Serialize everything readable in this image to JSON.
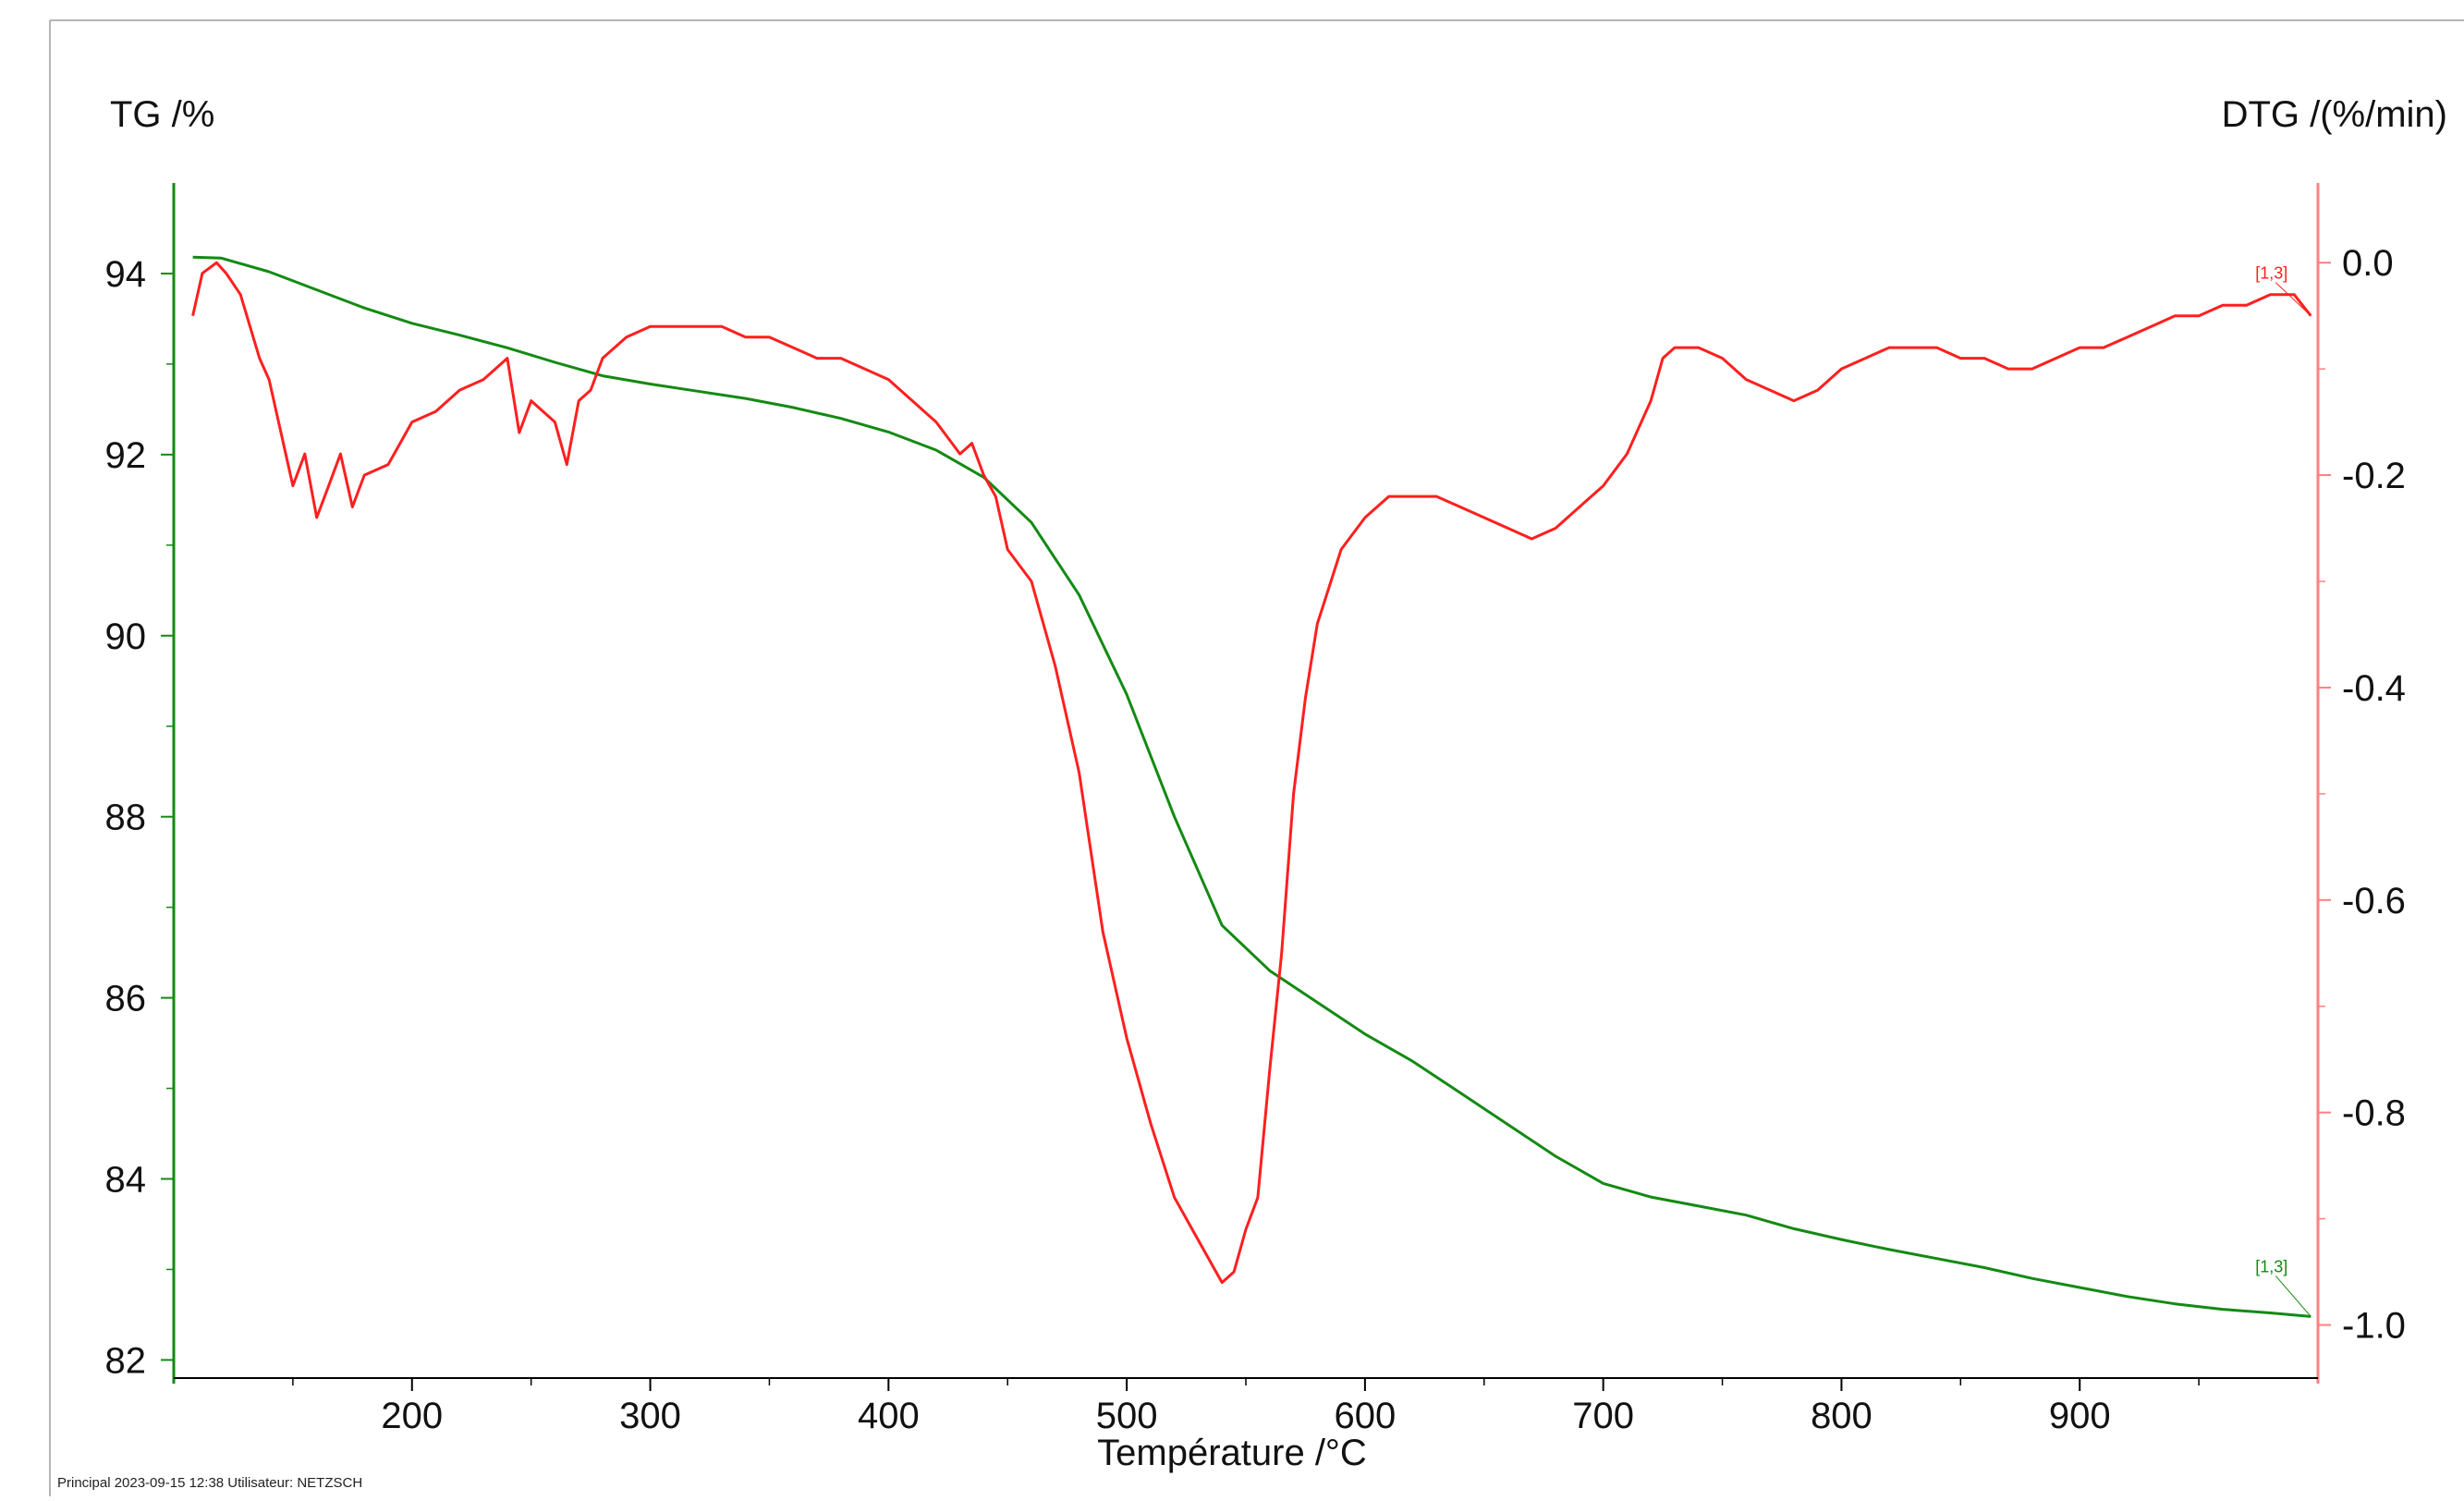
{
  "chart_data": {
    "type": "line",
    "title": "",
    "xlabel": "Température /°C",
    "ylabel_left": "TG /%",
    "ylabel_right": "DTG /(%/min)",
    "xlim": [
      100,
      1000
    ],
    "ylim_left": [
      81.8,
      95.0
    ],
    "ylim_right": [
      -1.05,
      0.075
    ],
    "x_ticks": [
      200,
      300,
      400,
      500,
      600,
      700,
      800,
      900
    ],
    "y_left_ticks": [
      82,
      84,
      86,
      88,
      90,
      92,
      94
    ],
    "y_right_ticks": [
      0.0,
      -0.2,
      -0.4,
      -0.6,
      -0.8,
      -1.0
    ],
    "y_right_tick_labels": [
      "0.0",
      "-0.2",
      "-0.4",
      "-0.6",
      "-0.8",
      "-1.0"
    ],
    "grid": false,
    "colors": {
      "tg": "#138a13",
      "dtg": "#ff1f1f",
      "left_axis": "#138a13",
      "right_axis": "#ff8080"
    },
    "series": [
      {
        "axis": "left",
        "color": "#138a13",
        "x": [
          108,
          120,
          140,
          160,
          180,
          200,
          220,
          240,
          260,
          280,
          300,
          320,
          340,
          360,
          380,
          400,
          420,
          440,
          460,
          480,
          500,
          520,
          540,
          560,
          580,
          600,
          620,
          640,
          660,
          680,
          700,
          720,
          740,
          760,
          780,
          800,
          820,
          840,
          860,
          880,
          900,
          920,
          940,
          960,
          980,
          997
        ],
        "y": [
          94.18,
          94.17,
          94.02,
          93.82,
          93.62,
          93.45,
          93.32,
          93.18,
          93.02,
          92.87,
          92.78,
          92.7,
          92.62,
          92.52,
          92.4,
          92.25,
          92.05,
          91.75,
          91.25,
          90.45,
          89.35,
          88.0,
          86.8,
          86.3,
          85.95,
          85.6,
          85.3,
          84.95,
          84.6,
          84.25,
          83.95,
          83.8,
          83.7,
          83.6,
          83.45,
          83.33,
          83.22,
          83.12,
          83.02,
          82.9,
          82.8,
          82.7,
          82.62,
          82.56,
          82.52,
          82.48
        ]
      },
      {
        "axis": "right",
        "color": "#ff1f1f",
        "x": [
          108,
          112,
          118,
          122,
          128,
          132,
          136,
          140,
          145,
          150,
          155,
          160,
          165,
          170,
          175,
          180,
          190,
          200,
          210,
          220,
          230,
          240,
          245,
          250,
          260,
          265,
          270,
          275,
          280,
          290,
          300,
          310,
          320,
          330,
          340,
          350,
          360,
          370,
          380,
          390,
          400,
          410,
          420,
          430,
          435,
          440,
          445,
          450,
          460,
          470,
          480,
          490,
          500,
          510,
          520,
          530,
          535,
          540,
          545,
          550,
          555,
          560,
          565,
          570,
          575,
          580,
          590,
          600,
          610,
          620,
          630,
          640,
          650,
          660,
          670,
          680,
          690,
          700,
          710,
          720,
          725,
          730,
          740,
          750,
          760,
          770,
          780,
          790,
          800,
          810,
          820,
          830,
          840,
          850,
          860,
          870,
          880,
          890,
          900,
          910,
          920,
          930,
          940,
          950,
          960,
          970,
          980,
          990,
          997
        ],
        "y": [
          -0.05,
          -0.01,
          0.0,
          -0.01,
          -0.03,
          -0.06,
          -0.09,
          -0.11,
          -0.16,
          -0.21,
          -0.18,
          -0.24,
          -0.21,
          -0.18,
          -0.23,
          -0.2,
          -0.19,
          -0.15,
          -0.14,
          -0.12,
          -0.11,
          -0.09,
          -0.16,
          -0.13,
          -0.15,
          -0.19,
          -0.13,
          -0.12,
          -0.09,
          -0.07,
          -0.06,
          -0.06,
          -0.06,
          -0.06,
          -0.07,
          -0.07,
          -0.08,
          -0.09,
          -0.09,
          -0.1,
          -0.11,
          -0.13,
          -0.15,
          -0.18,
          -0.17,
          -0.2,
          -0.22,
          -0.27,
          -0.3,
          -0.38,
          -0.48,
          -0.63,
          -0.73,
          -0.81,
          -0.88,
          -0.92,
          -0.94,
          -0.96,
          -0.95,
          -0.91,
          -0.88,
          -0.76,
          -0.65,
          -0.5,
          -0.41,
          -0.34,
          -0.27,
          -0.24,
          -0.22,
          -0.22,
          -0.22,
          -0.23,
          -0.24,
          -0.25,
          -0.26,
          -0.25,
          -0.23,
          -0.21,
          -0.18,
          -0.13,
          -0.09,
          -0.08,
          -0.08,
          -0.09,
          -0.11,
          -0.12,
          -0.13,
          -0.12,
          -0.1,
          -0.09,
          -0.08,
          -0.08,
          -0.08,
          -0.09,
          -0.09,
          -0.1,
          -0.1,
          -0.09,
          -0.08,
          -0.08,
          -0.07,
          -0.06,
          -0.05,
          -0.05,
          -0.04,
          -0.04,
          -0.03,
          -0.03,
          -0.05
        ]
      }
    ],
    "annotations": [
      {
        "text": "[1,3]",
        "series": "right"
      },
      {
        "text": "[1,3]",
        "series": "left"
      }
    ]
  },
  "footer_text": "Principal    2023-09-15 12:38    Utilisateur: NETZSCH"
}
